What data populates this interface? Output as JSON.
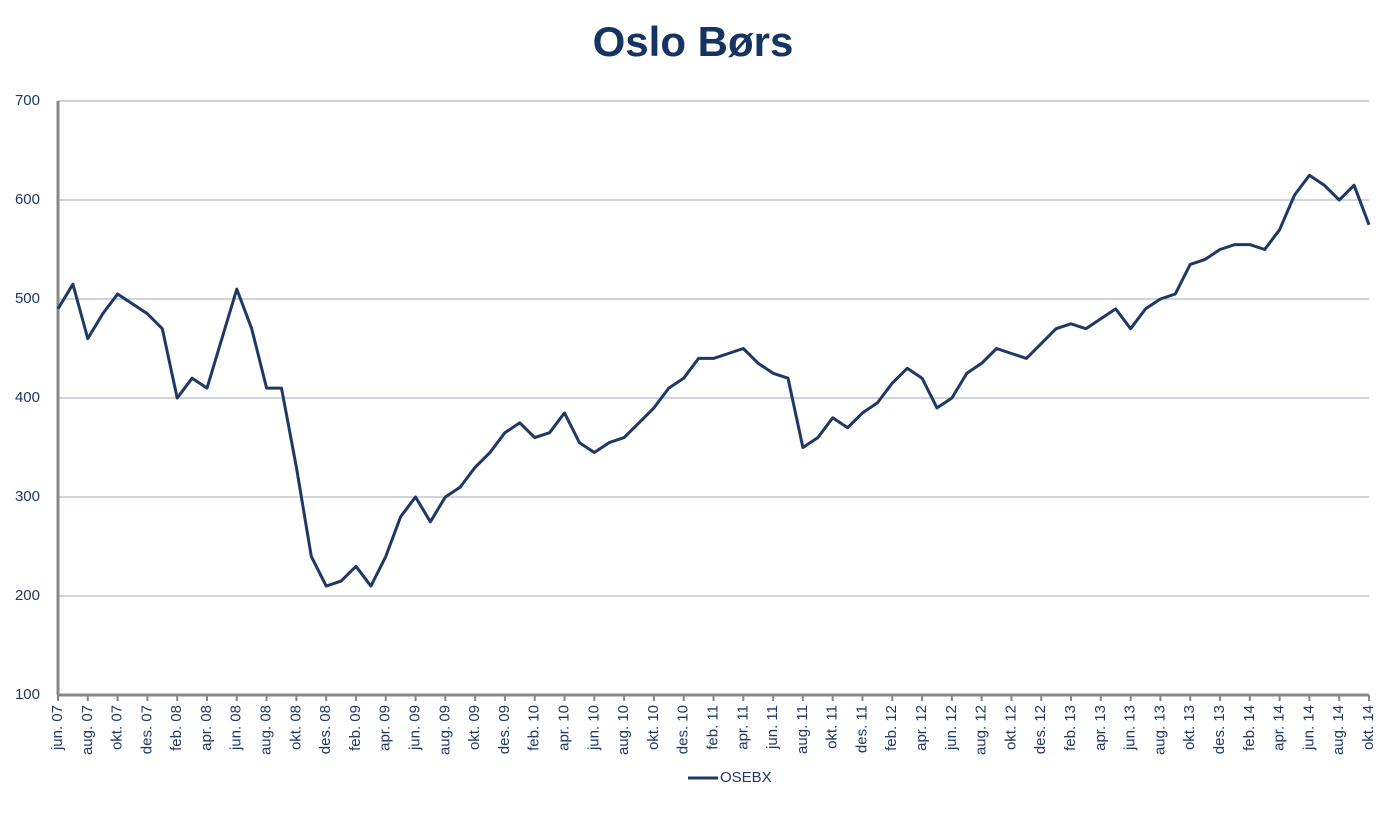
{
  "chart_data": {
    "type": "line",
    "title": "Oslo Børs",
    "categories": [
      "jun. 07",
      null,
      "aug. 07",
      null,
      "okt. 07",
      null,
      "des. 07",
      null,
      "feb. 08",
      null,
      "apr. 08",
      null,
      "jun. 08",
      null,
      "aug. 08",
      null,
      "okt. 08",
      null,
      "des. 08",
      null,
      "feb. 09",
      null,
      "apr. 09",
      null,
      "jun. 09",
      null,
      "aug. 09",
      null,
      "okt. 09",
      null,
      "des. 09",
      null,
      "feb. 10",
      null,
      "apr. 10",
      null,
      "jun. 10",
      null,
      "aug. 10",
      null,
      "okt. 10",
      null,
      "des. 10",
      null,
      "feb. 11",
      null,
      "apr. 11",
      null,
      "jun. 11",
      null,
      "aug. 11",
      null,
      "okt. 11",
      null,
      "des. 11",
      null,
      "feb. 12",
      null,
      "apr. 12",
      null,
      "jun. 12",
      null,
      "aug. 12",
      null,
      "okt. 12",
      null,
      "des. 12",
      null,
      "feb. 13",
      null,
      "apr. 13",
      null,
      "jun. 13",
      null,
      "aug. 13",
      null,
      "okt. 13",
      null,
      "des. 13",
      null,
      "feb. 14",
      null,
      "apr. 14",
      null,
      "jun. 14",
      null,
      "aug. 14",
      null,
      "okt. 14"
    ],
    "series": [
      {
        "name": "OSEBX",
        "color": "#1f3864",
        "values": [
          490,
          515,
          460,
          485,
          505,
          495,
          485,
          470,
          400,
          420,
          410,
          460,
          510,
          470,
          410,
          410,
          330,
          240,
          210,
          215,
          230,
          210,
          240,
          280,
          300,
          275,
          300,
          310,
          330,
          345,
          365,
          375,
          360,
          365,
          385,
          355,
          345,
          355,
          360,
          375,
          390,
          410,
          420,
          440,
          440,
          445,
          450,
          435,
          425,
          420,
          350,
          360,
          380,
          370,
          385,
          395,
          415,
          430,
          420,
          390,
          400,
          425,
          435,
          450,
          445,
          440,
          455,
          470,
          475,
          470,
          480,
          490,
          470,
          490,
          500,
          505,
          535,
          540,
          550,
          555,
          555,
          550,
          570,
          605,
          625,
          615,
          600,
          615,
          575
        ]
      }
    ],
    "ylim": [
      100,
      700
    ],
    "yticks": [
      100,
      200,
      300,
      400,
      500,
      600,
      700
    ],
    "grid": true,
    "legend": "bottom"
  }
}
